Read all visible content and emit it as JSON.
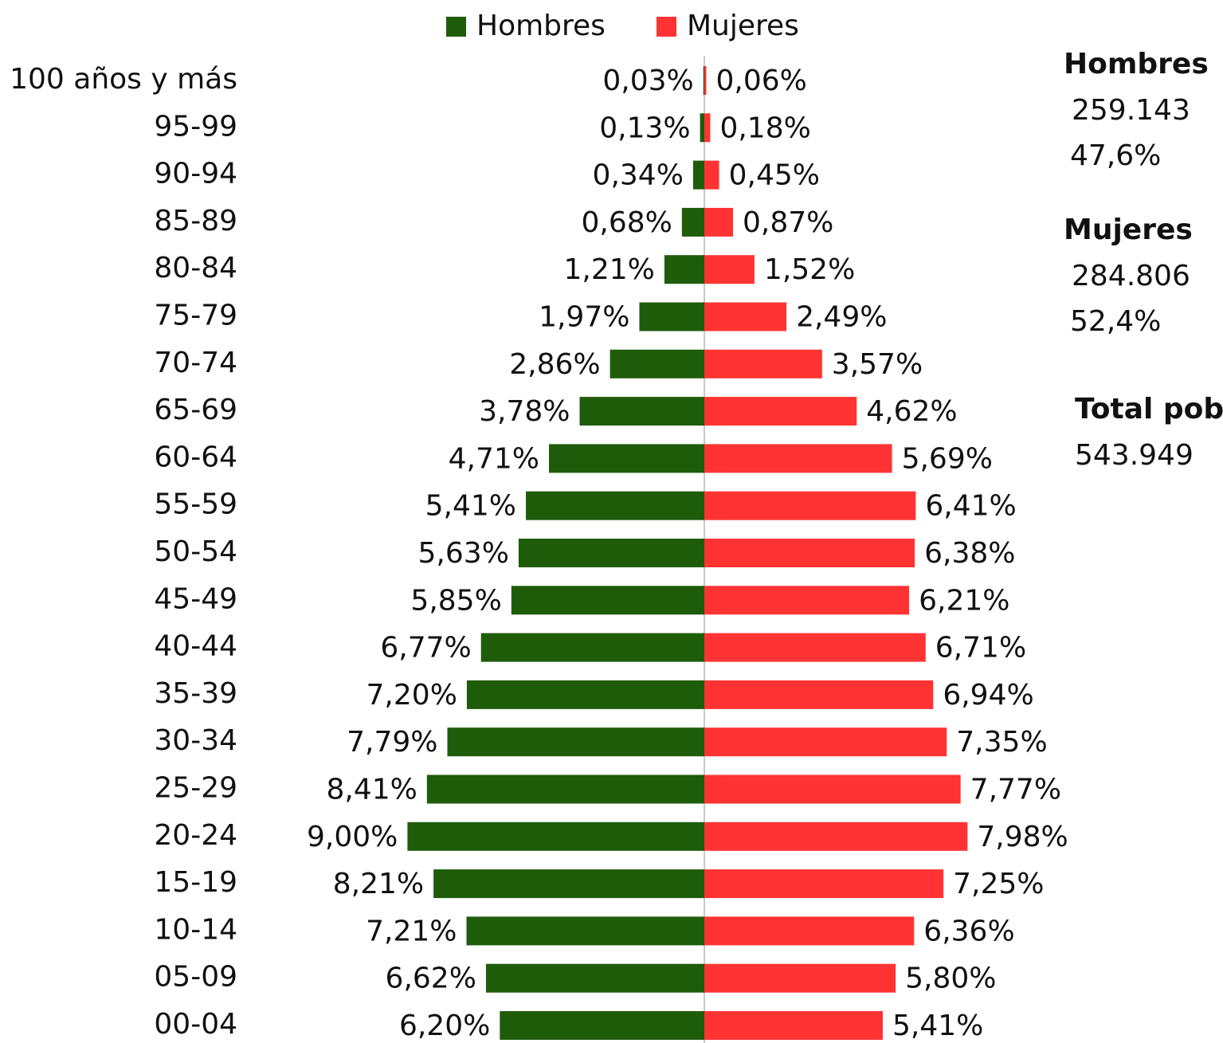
{
  "chart_data": {
    "type": "population-pyramid",
    "categories": [
      "100 años y más",
      "95-99",
      "90-94",
      "85-89",
      "80-84",
      "75-79",
      "70-74",
      "65-69",
      "60-64",
      "55-59",
      "50-54",
      "45-49",
      "40-44",
      "35-39",
      "30-34",
      "25-29",
      "20-24",
      "15-19",
      "10-14",
      "05-09",
      "00-04"
    ],
    "series": [
      {
        "name": "Hombres",
        "color": "#1f5c0a",
        "values": [
          0.03,
          0.13,
          0.34,
          0.68,
          1.21,
          1.97,
          2.86,
          3.78,
          4.71,
          5.41,
          5.63,
          5.85,
          6.77,
          7.2,
          7.79,
          8.41,
          9.0,
          8.21,
          7.21,
          6.62,
          6.2
        ],
        "value_labels": [
          "0,03%",
          "0,13%",
          "0,34%",
          "0,68%",
          "1,21%",
          "1,97%",
          "2,86%",
          "3,78%",
          "4,71%",
          "5,41%",
          "5,63%",
          "5,85%",
          "6,77%",
          "7,20%",
          "7,79%",
          "8,41%",
          "9,00%",
          "8,21%",
          "7,21%",
          "6,62%",
          "6,20%"
        ]
      },
      {
        "name": "Mujeres",
        "color": "#ff3333",
        "values": [
          0.06,
          0.18,
          0.45,
          0.87,
          1.52,
          2.49,
          3.57,
          4.62,
          5.69,
          6.41,
          6.38,
          6.21,
          6.71,
          6.94,
          7.35,
          7.77,
          7.98,
          7.25,
          6.36,
          5.8,
          5.41
        ],
        "value_labels": [
          "0,06%",
          "0,18%",
          "0,45%",
          "0,87%",
          "1,52%",
          "2,49%",
          "3,57%",
          "4,62%",
          "5,69%",
          "6,41%",
          "6,38%",
          "6,21%",
          "6,71%",
          "6,94%",
          "7,35%",
          "7,77%",
          "7,98%",
          "7,25%",
          "6,36%",
          "5,80%",
          "5,41%"
        ]
      }
    ],
    "summary": [
      {
        "title": "Hombres",
        "color": "#3d6b22",
        "count": "259.143",
        "share": "47,6%"
      },
      {
        "title": "Mujeres",
        "color": "#ff3333",
        "count": "284.806",
        "share": "52,4%"
      },
      {
        "title": "Total pob",
        "color": "#4472c4",
        "count": "543.949"
      }
    ]
  }
}
